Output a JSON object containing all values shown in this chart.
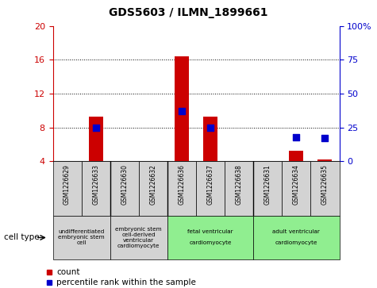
{
  "title": "GDS5603 / ILMN_1899661",
  "samples": [
    "GSM1226629",
    "GSM1226633",
    "GSM1226630",
    "GSM1226632",
    "GSM1226636",
    "GSM1226637",
    "GSM1226638",
    "GSM1226631",
    "GSM1226634",
    "GSM1226635"
  ],
  "counts": [
    4.0,
    9.3,
    4.0,
    4.0,
    16.4,
    9.3,
    4.0,
    4.0,
    5.2,
    4.2
  ],
  "percentiles": [
    null,
    25,
    null,
    null,
    37,
    25,
    null,
    null,
    18,
    17
  ],
  "ylim_left": [
    4,
    20
  ],
  "ylim_right": [
    0,
    100
  ],
  "yticks_left": [
    4,
    8,
    12,
    16,
    20
  ],
  "yticks_right": [
    0,
    25,
    50,
    75,
    100
  ],
  "ytick_labels_right": [
    "0",
    "25",
    "50",
    "75",
    "100%"
  ],
  "cell_type_groups": [
    {
      "label": "undifferentiated\nembryonic stem\ncell",
      "start": 0,
      "end": 2,
      "color": "#d3d3d3"
    },
    {
      "label": "embryonic stem\ncell-derived\nventricular\ncardiomyocyte",
      "start": 2,
      "end": 4,
      "color": "#d3d3d3"
    },
    {
      "label": "fetal ventricular\n\ncardiomyocyte",
      "start": 4,
      "end": 7,
      "color": "#90ee90"
    },
    {
      "label": "adult ventricular\n\ncardiomyocyte",
      "start": 7,
      "end": 10,
      "color": "#90ee90"
    }
  ],
  "bar_color": "#cc0000",
  "dot_color": "#0000cc",
  "bar_width": 0.5,
  "dot_size": 30,
  "bg_color": "#ffffff",
  "axis_color_left": "#cc0000",
  "axis_color_right": "#0000cc",
  "grid_color": "#000000",
  "sample_bg_color": "#d3d3d3",
  "legend_count_label": "count",
  "legend_pct_label": "percentile rank within the sample",
  "cell_type_label": "cell type"
}
